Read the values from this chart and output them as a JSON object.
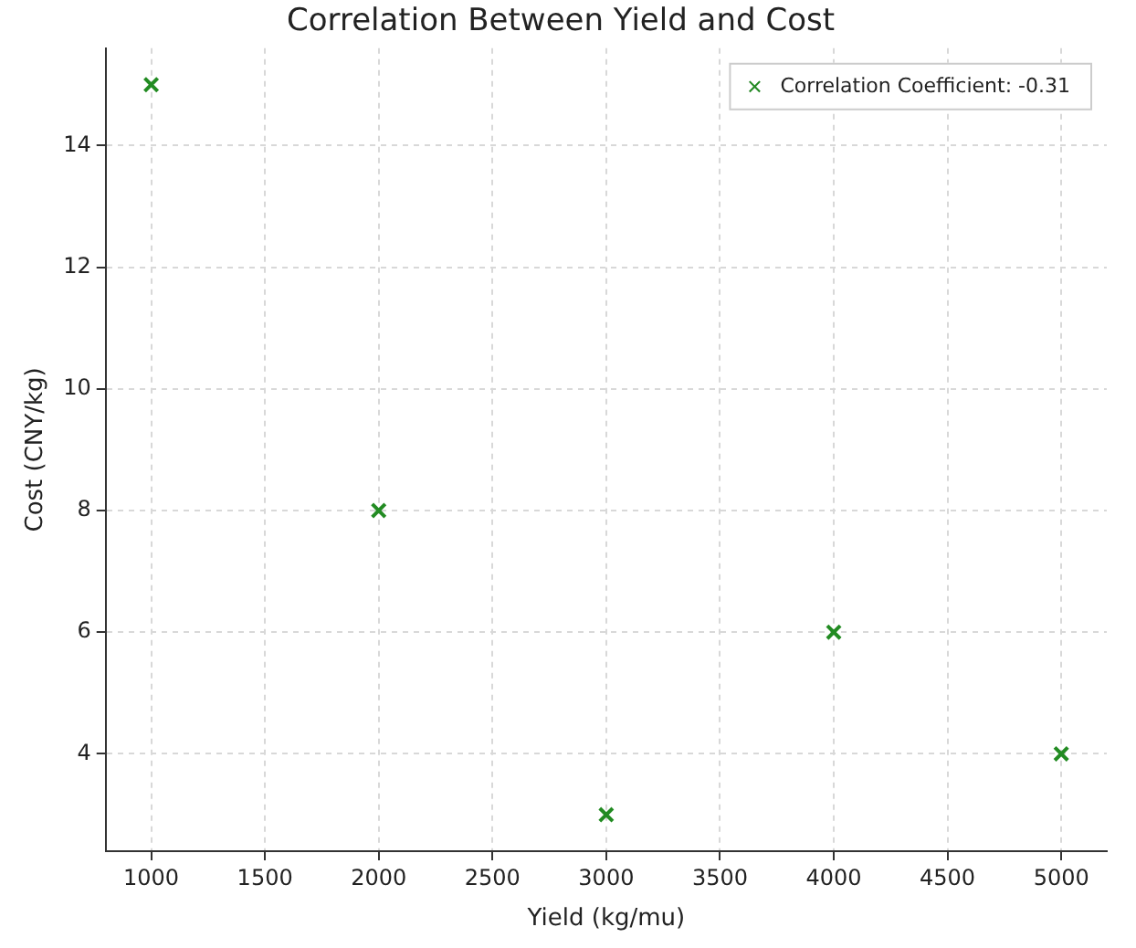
{
  "chart_data": {
    "type": "scatter",
    "title": "Correlation Between Yield and Cost",
    "xlabel": "Yield (kg/mu)",
    "ylabel": "Cost (CNY/kg)",
    "x": [
      1000,
      2000,
      3000,
      4000,
      5000
    ],
    "series": [
      {
        "name": "Correlation Coefficient: -0.31",
        "color": "#228b22",
        "values": [
          15,
          8,
          3,
          6,
          4
        ]
      }
    ],
    "xlim": [
      800,
      5200
    ],
    "xticks": [
      1000,
      1500,
      2000,
      2500,
      3000,
      3500,
      4000,
      4500,
      5000
    ],
    "ylim": [
      2.4,
      15.6
    ],
    "yticks": [
      4,
      6,
      8,
      10,
      12,
      14
    ],
    "grid": true,
    "legend": "top right",
    "marker": "cross"
  }
}
